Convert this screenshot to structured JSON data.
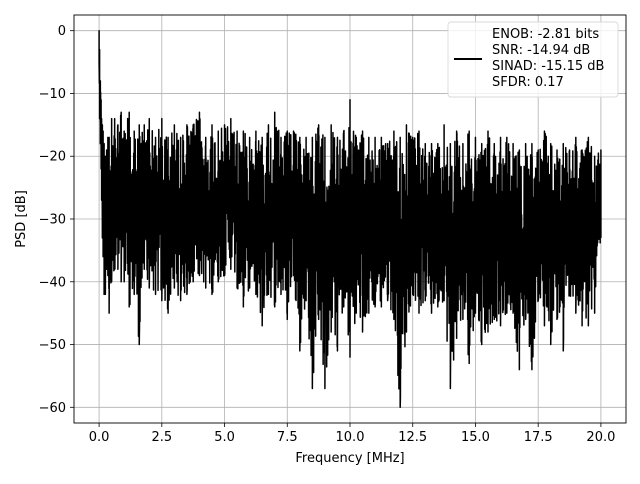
{
  "chart_data": {
    "type": "line",
    "title": "",
    "xlabel": "Frequency [MHz]",
    "ylabel": "PSD [dB]",
    "xlim": [
      -1.0,
      21.0
    ],
    "ylim": [
      -62.5,
      2.5
    ],
    "xticks": [
      0.0,
      2.5,
      5.0,
      7.5,
      10.0,
      12.5,
      15.0,
      17.5,
      20.0
    ],
    "xtick_labels": [
      "0.0",
      "2.5",
      "5.0",
      "7.5",
      "10.0",
      "12.5",
      "15.0",
      "17.5",
      "20.0"
    ],
    "yticks": [
      0,
      -10,
      -20,
      -30,
      -40,
      -50,
      -60
    ],
    "ytick_labels": [
      "0",
      "−10",
      "−20",
      "−30",
      "−40",
      "−50",
      "−60"
    ],
    "grid": true,
    "legend_position": "top-right",
    "legend_lines": [
      "ENOB: -2.81 bits",
      "SNR: -14.94 dB",
      "SINAD: -15.15 dB",
      "SFDR: 0.17"
    ],
    "series": [
      {
        "color": "#000000",
        "x": [
          0.0,
          0.02,
          0.05,
          0.08,
          0.1,
          0.13,
          0.16,
          0.2,
          0.25,
          0.3,
          0.35,
          0.4,
          0.5,
          0.62,
          0.75,
          0.88,
          1.0,
          1.2,
          1.4,
          1.6,
          1.8,
          2.0,
          2.25,
          2.5,
          2.75,
          3.0,
          3.25,
          3.5,
          3.75,
          4.0,
          4.25,
          4.5,
          4.75,
          5.0,
          5.25,
          5.5,
          5.75,
          6.0,
          6.25,
          6.5,
          6.75,
          7.0,
          7.25,
          7.5,
          7.75,
          8.0,
          8.25,
          8.5,
          8.75,
          9.0,
          9.25,
          9.5,
          9.75,
          10.0,
          10.25,
          10.5,
          10.75,
          11.0,
          11.25,
          11.5,
          11.75,
          12.0,
          12.25,
          12.5,
          12.75,
          13.0,
          13.25,
          13.5,
          13.75,
          14.0,
          14.25,
          14.5,
          14.75,
          15.0,
          15.25,
          15.5,
          15.75,
          16.0,
          16.25,
          16.5,
          16.75,
          17.0,
          17.25,
          17.5,
          17.75,
          18.0,
          18.25,
          18.5,
          18.75,
          19.0,
          19.25,
          19.5,
          19.75,
          20.0
        ],
        "upper": [
          0,
          -3,
          -8,
          -11,
          -14,
          -15,
          -16,
          -18,
          -20,
          -19,
          -17,
          -17,
          -14,
          -14,
          -15,
          -13,
          -16,
          -13,
          -16,
          -15,
          -15,
          -14,
          -17,
          -14,
          -17,
          -15,
          -17,
          -15,
          -15,
          -13,
          -17,
          -15,
          -16,
          -15,
          -14,
          -16,
          -16,
          -17,
          -16,
          -17,
          -15,
          -13,
          -17,
          -16,
          -16,
          -17,
          -17,
          -17,
          -15,
          -17,
          -15,
          -17,
          -16,
          -11,
          -17,
          -16,
          -17,
          -17,
          -17,
          -18,
          -16,
          -17,
          -15,
          -17,
          -16,
          -18,
          -18,
          -18,
          -15,
          -18,
          -16,
          -18,
          -16,
          -17,
          -18,
          -16,
          -18,
          -17,
          -17,
          -18,
          -19,
          -18,
          -18,
          -19,
          -16,
          -18,
          -19,
          -18,
          -19,
          -17,
          -19,
          -17,
          -20,
          -19
        ],
        "lower": [
          -5,
          -14,
          -18,
          -22,
          -27,
          -33,
          -36,
          -42,
          -42,
          -38,
          -39,
          -45,
          -40,
          -38,
          -38,
          -40,
          -40,
          -44,
          -42,
          -50,
          -38,
          -41,
          -42,
          -43,
          -45,
          -41,
          -43,
          -42,
          -40,
          -39,
          -41,
          -42,
          -40,
          -39,
          -38,
          -41,
          -44,
          -41,
          -42,
          -47,
          -42,
          -44,
          -42,
          -46,
          -39,
          -51,
          -43,
          -57,
          -46,
          -57,
          -48,
          -51,
          -44,
          -52,
          -45,
          -48,
          -45,
          -44,
          -44,
          -43,
          -46,
          -60,
          -48,
          -42,
          -45,
          -43,
          -45,
          -44,
          -43,
          -57,
          -49,
          -46,
          -53,
          -45,
          -50,
          -48,
          -46,
          -47,
          -45,
          -45,
          -54,
          -46,
          -54,
          -43,
          -47,
          -50,
          -46,
          -51,
          -42,
          -45,
          -47,
          -47,
          -45,
          -33
        ]
      }
    ]
  }
}
